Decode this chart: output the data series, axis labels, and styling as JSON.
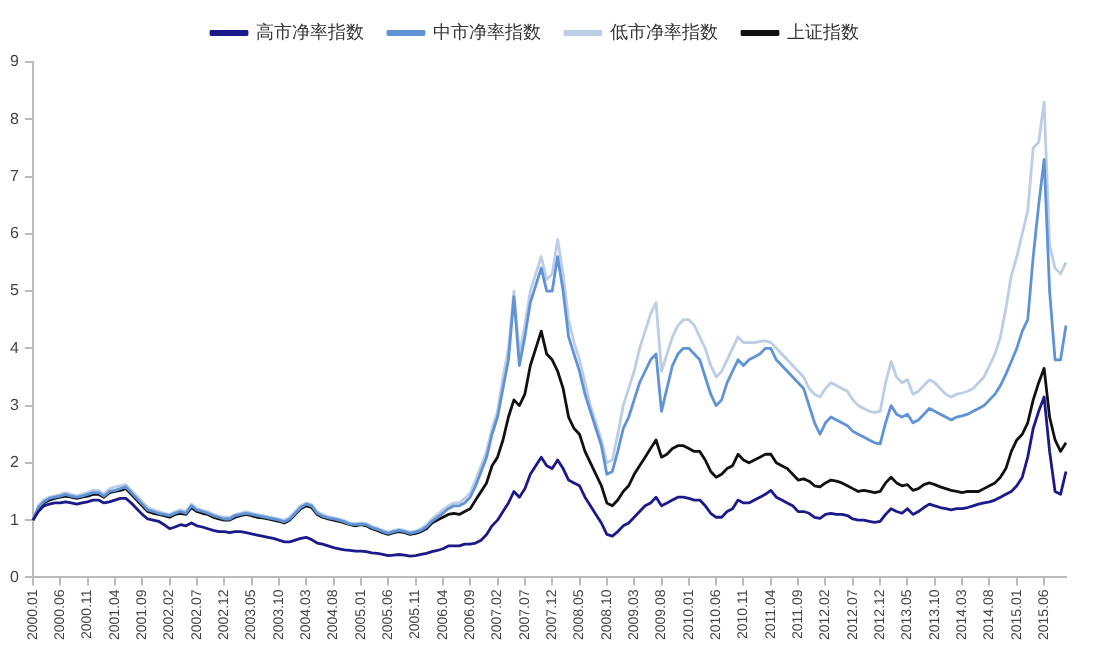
{
  "chart_data": {
    "type": "line",
    "legend": "top",
    "grid": false,
    "marker": "none",
    "line_style": "solid",
    "ylim": [
      0,
      9
    ],
    "yticks": [
      0,
      1,
      2,
      3,
      4,
      5,
      6,
      7,
      8,
      9
    ],
    "categories": [
      "2000.01",
      null,
      null,
      null,
      null,
      "2000.06",
      null,
      null,
      null,
      null,
      "2000.11",
      null,
      null,
      null,
      null,
      "2001.04",
      null,
      null,
      null,
      null,
      "2001.09",
      null,
      null,
      null,
      null,
      "2002.02",
      null,
      null,
      null,
      null,
      "2002.07",
      null,
      null,
      null,
      null,
      "2002.12",
      null,
      null,
      null,
      null,
      "2003.05",
      null,
      null,
      null,
      null,
      "2003.10",
      null,
      null,
      null,
      null,
      "2004.03",
      null,
      null,
      null,
      null,
      "2004.08",
      null,
      null,
      null,
      null,
      "2005.01",
      null,
      null,
      null,
      null,
      "2005.06",
      null,
      null,
      null,
      null,
      "2005.11",
      null,
      null,
      null,
      null,
      "2006.04",
      null,
      null,
      null,
      null,
      "2006.09",
      null,
      null,
      null,
      null,
      "2007.02",
      null,
      null,
      null,
      null,
      "2007.07",
      null,
      null,
      null,
      null,
      "2007.12",
      null,
      null,
      null,
      null,
      "2008.05",
      null,
      null,
      null,
      null,
      "2008.10",
      null,
      null,
      null,
      null,
      "2009.03",
      null,
      null,
      null,
      null,
      "2009.08",
      null,
      null,
      null,
      null,
      "2010.01",
      null,
      null,
      null,
      null,
      "2010.06",
      null,
      null,
      null,
      null,
      "2010.11",
      null,
      null,
      null,
      null,
      "2011.04",
      null,
      null,
      null,
      null,
      "2011.09",
      null,
      null,
      null,
      null,
      "2012.02",
      null,
      null,
      null,
      null,
      "2012.07",
      null,
      null,
      null,
      null,
      "2012.12",
      null,
      null,
      null,
      null,
      "2013.05",
      null,
      null,
      null,
      null,
      "2013.10",
      null,
      null,
      null,
      null,
      "2014.03",
      null,
      null,
      null,
      null,
      "2014.08",
      null,
      null,
      null,
      null,
      "2015.01",
      null,
      null,
      null,
      null,
      "2015.06",
      null,
      null,
      null,
      null
    ],
    "series": [
      {
        "name": "高市净率指数",
        "color": "#1c1a8a",
        "values": [
          1.0,
          1.15,
          1.25,
          1.28,
          1.3,
          1.3,
          1.32,
          1.3,
          1.28,
          1.3,
          1.32,
          1.35,
          1.35,
          1.3,
          1.32,
          1.35,
          1.38,
          1.38,
          1.3,
          1.2,
          1.1,
          1.02,
          1.0,
          0.98,
          0.92,
          0.85,
          0.88,
          0.92,
          0.9,
          0.95,
          0.9,
          0.88,
          0.85,
          0.82,
          0.8,
          0.8,
          0.78,
          0.8,
          0.8,
          0.78,
          0.76,
          0.74,
          0.72,
          0.7,
          0.68,
          0.65,
          0.62,
          0.62,
          0.65,
          0.68,
          0.7,
          0.66,
          0.6,
          0.58,
          0.55,
          0.52,
          0.5,
          0.48,
          0.47,
          0.46,
          0.46,
          0.45,
          0.43,
          0.42,
          0.4,
          0.38,
          0.39,
          0.4,
          0.39,
          0.37,
          0.38,
          0.4,
          0.42,
          0.45,
          0.47,
          0.5,
          0.55,
          0.55,
          0.55,
          0.58,
          0.58,
          0.6,
          0.65,
          0.75,
          0.9,
          1.0,
          1.15,
          1.3,
          1.5,
          1.4,
          1.55,
          1.8,
          1.95,
          2.1,
          1.95,
          1.9,
          2.05,
          1.9,
          1.7,
          1.65,
          1.6,
          1.4,
          1.25,
          1.1,
          0.95,
          0.75,
          0.72,
          0.8,
          0.9,
          0.95,
          1.05,
          1.15,
          1.25,
          1.3,
          1.4,
          1.25,
          1.3,
          1.35,
          1.4,
          1.4,
          1.38,
          1.35,
          1.35,
          1.25,
          1.12,
          1.05,
          1.05,
          1.15,
          1.2,
          1.35,
          1.3,
          1.3,
          1.35,
          1.4,
          1.45,
          1.52,
          1.4,
          1.35,
          1.3,
          1.25,
          1.15,
          1.15,
          1.12,
          1.05,
          1.03,
          1.1,
          1.12,
          1.1,
          1.1,
          1.08,
          1.02,
          1.0,
          1.0,
          0.98,
          0.96,
          0.98,
          1.1,
          1.2,
          1.15,
          1.12,
          1.2,
          1.1,
          1.15,
          1.22,
          1.28,
          1.25,
          1.22,
          1.2,
          1.18,
          1.2,
          1.2,
          1.22,
          1.25,
          1.28,
          1.3,
          1.32,
          1.35,
          1.4,
          1.45,
          1.5,
          1.6,
          1.75,
          2.1,
          2.6,
          2.9,
          3.15,
          2.2,
          1.5,
          1.45,
          1.85
        ]
      },
      {
        "name": "中市净率指数",
        "color": "#5f93d6",
        "values": [
          1.0,
          1.22,
          1.32,
          1.38,
          1.4,
          1.42,
          1.45,
          1.42,
          1.4,
          1.42,
          1.45,
          1.48,
          1.48,
          1.42,
          1.5,
          1.52,
          1.55,
          1.58,
          1.48,
          1.38,
          1.28,
          1.18,
          1.15,
          1.12,
          1.1,
          1.08,
          1.12,
          1.15,
          1.12,
          1.25,
          1.18,
          1.15,
          1.12,
          1.08,
          1.05,
          1.02,
          1.02,
          1.08,
          1.1,
          1.12,
          1.1,
          1.08,
          1.06,
          1.04,
          1.02,
          1.0,
          0.97,
          1.02,
          1.12,
          1.22,
          1.28,
          1.25,
          1.12,
          1.07,
          1.04,
          1.02,
          1.0,
          0.97,
          0.93,
          0.92,
          0.93,
          0.92,
          0.87,
          0.84,
          0.8,
          0.77,
          0.8,
          0.82,
          0.8,
          0.77,
          0.79,
          0.82,
          0.88,
          0.98,
          1.05,
          1.12,
          1.2,
          1.25,
          1.25,
          1.3,
          1.4,
          1.6,
          1.85,
          2.1,
          2.5,
          2.8,
          3.3,
          3.8,
          4.9,
          3.7,
          4.2,
          4.8,
          5.1,
          5.4,
          5.0,
          5.0,
          5.6,
          5.0,
          4.2,
          3.9,
          3.6,
          3.2,
          2.9,
          2.6,
          2.3,
          1.8,
          1.85,
          2.2,
          2.6,
          2.8,
          3.1,
          3.4,
          3.6,
          3.8,
          3.9,
          2.9,
          3.3,
          3.7,
          3.9,
          4.0,
          4.0,
          3.9,
          3.8,
          3.5,
          3.2,
          3.0,
          3.1,
          3.4,
          3.6,
          3.8,
          3.7,
          3.8,
          3.85,
          3.9,
          4.0,
          4.0,
          3.8,
          3.7,
          3.6,
          3.5,
          3.4,
          3.3,
          3.0,
          2.7,
          2.5,
          2.7,
          2.8,
          2.75,
          2.7,
          2.65,
          2.55,
          2.5,
          2.45,
          2.4,
          2.35,
          2.33,
          2.7,
          3.0,
          2.85,
          2.8,
          2.85,
          2.7,
          2.75,
          2.85,
          2.95,
          2.9,
          2.85,
          2.8,
          2.75,
          2.8,
          2.82,
          2.85,
          2.9,
          2.95,
          3.0,
          3.1,
          3.2,
          3.35,
          3.55,
          3.77,
          4.0,
          4.3,
          4.5,
          5.6,
          6.5,
          7.3,
          5.0,
          3.8,
          3.8,
          4.4
        ]
      },
      {
        "name": "低市净率指数",
        "color": "#bccde6",
        "values": [
          1.0,
          1.25,
          1.35,
          1.4,
          1.42,
          1.45,
          1.48,
          1.45,
          1.42,
          1.45,
          1.48,
          1.52,
          1.52,
          1.45,
          1.55,
          1.58,
          1.6,
          1.62,
          1.52,
          1.42,
          1.32,
          1.22,
          1.18,
          1.15,
          1.12,
          1.1,
          1.15,
          1.18,
          1.15,
          1.28,
          1.2,
          1.17,
          1.15,
          1.1,
          1.07,
          1.05,
          1.05,
          1.1,
          1.12,
          1.15,
          1.12,
          1.1,
          1.08,
          1.06,
          1.04,
          1.02,
          1.0,
          1.05,
          1.15,
          1.25,
          1.3,
          1.27,
          1.15,
          1.1,
          1.06,
          1.04,
          1.02,
          0.99,
          0.95,
          0.94,
          0.95,
          0.94,
          0.89,
          0.86,
          0.82,
          0.79,
          0.82,
          0.84,
          0.82,
          0.79,
          0.81,
          0.85,
          0.92,
          1.02,
          1.1,
          1.18,
          1.25,
          1.3,
          1.3,
          1.38,
          1.48,
          1.7,
          1.95,
          2.2,
          2.6,
          2.9,
          3.5,
          4.0,
          5.0,
          3.9,
          4.4,
          5.0,
          5.3,
          5.6,
          5.2,
          5.3,
          5.9,
          5.3,
          4.5,
          4.1,
          3.8,
          3.4,
          3.0,
          2.7,
          2.4,
          2.0,
          2.05,
          2.5,
          3.0,
          3.3,
          3.6,
          4.0,
          4.3,
          4.6,
          4.8,
          3.6,
          3.9,
          4.2,
          4.4,
          4.5,
          4.5,
          4.4,
          4.2,
          4.0,
          3.7,
          3.5,
          3.6,
          3.8,
          4.0,
          4.2,
          4.1,
          4.1,
          4.1,
          4.12,
          4.13,
          4.1,
          4.0,
          3.9,
          3.8,
          3.7,
          3.6,
          3.5,
          3.3,
          3.2,
          3.15,
          3.3,
          3.4,
          3.35,
          3.3,
          3.25,
          3.1,
          3.0,
          2.95,
          2.9,
          2.88,
          2.9,
          3.4,
          3.77,
          3.5,
          3.4,
          3.45,
          3.2,
          3.25,
          3.35,
          3.45,
          3.4,
          3.3,
          3.2,
          3.15,
          3.2,
          3.22,
          3.25,
          3.3,
          3.4,
          3.5,
          3.7,
          3.9,
          4.2,
          4.7,
          5.27,
          5.6,
          6.0,
          6.4,
          7.5,
          7.6,
          8.3,
          5.8,
          5.4,
          5.3,
          5.5
        ]
      },
      {
        "name": "上证指数",
        "color": "#111111",
        "values": [
          1.0,
          1.2,
          1.3,
          1.35,
          1.38,
          1.4,
          1.42,
          1.4,
          1.38,
          1.4,
          1.42,
          1.45,
          1.45,
          1.4,
          1.48,
          1.5,
          1.52,
          1.55,
          1.45,
          1.35,
          1.25,
          1.15,
          1.12,
          1.1,
          1.08,
          1.05,
          1.1,
          1.12,
          1.1,
          1.22,
          1.15,
          1.12,
          1.1,
          1.05,
          1.02,
          1.0,
          1.0,
          1.05,
          1.08,
          1.1,
          1.08,
          1.05,
          1.04,
          1.02,
          1.0,
          0.98,
          0.95,
          1.0,
          1.1,
          1.2,
          1.25,
          1.22,
          1.1,
          1.05,
          1.02,
          1.0,
          0.98,
          0.95,
          0.92,
          0.9,
          0.92,
          0.9,
          0.85,
          0.82,
          0.78,
          0.75,
          0.78,
          0.8,
          0.78,
          0.75,
          0.77,
          0.8,
          0.85,
          0.95,
          1.0,
          1.05,
          1.1,
          1.12,
          1.1,
          1.15,
          1.2,
          1.35,
          1.5,
          1.65,
          1.95,
          2.1,
          2.4,
          2.8,
          3.1,
          3.0,
          3.2,
          3.7,
          4.0,
          4.3,
          3.9,
          3.8,
          3.6,
          3.3,
          2.8,
          2.6,
          2.5,
          2.2,
          2.0,
          1.8,
          1.6,
          1.3,
          1.25,
          1.35,
          1.5,
          1.6,
          1.8,
          1.95,
          2.1,
          2.25,
          2.4,
          2.1,
          2.15,
          2.25,
          2.3,
          2.3,
          2.25,
          2.2,
          2.2,
          2.05,
          1.85,
          1.75,
          1.8,
          1.9,
          1.95,
          2.15,
          2.05,
          2.0,
          2.05,
          2.1,
          2.15,
          2.15,
          2.0,
          1.95,
          1.9,
          1.8,
          1.7,
          1.72,
          1.68,
          1.6,
          1.58,
          1.65,
          1.7,
          1.68,
          1.65,
          1.6,
          1.55,
          1.5,
          1.52,
          1.5,
          1.48,
          1.5,
          1.65,
          1.75,
          1.65,
          1.6,
          1.62,
          1.52,
          1.55,
          1.62,
          1.65,
          1.62,
          1.58,
          1.55,
          1.52,
          1.5,
          1.48,
          1.5,
          1.5,
          1.5,
          1.55,
          1.6,
          1.65,
          1.75,
          1.9,
          2.2,
          2.4,
          2.5,
          2.7,
          3.1,
          3.4,
          3.65,
          2.8,
          2.4,
          2.2,
          2.35
        ]
      }
    ]
  }
}
